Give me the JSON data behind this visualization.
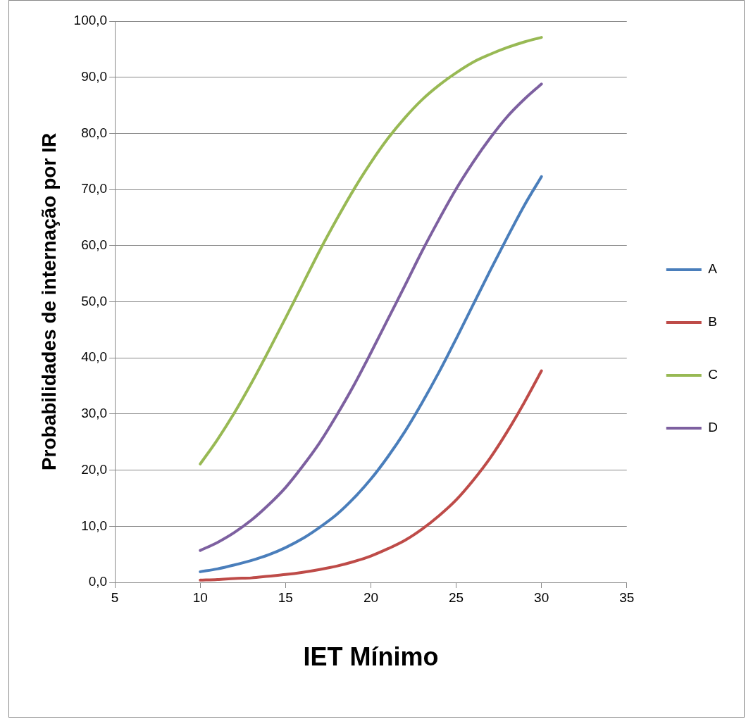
{
  "chart_data": {
    "type": "line",
    "xlabel": "IET Mínimo",
    "ylabel": "Probabilidades de internação por IR",
    "x": [
      10,
      11,
      12,
      13,
      14,
      15,
      16,
      17,
      18,
      19,
      20,
      21,
      22,
      23,
      24,
      25,
      26,
      27,
      28,
      29,
      30
    ],
    "series": [
      {
        "name": "A",
        "color": "#4a7ebb",
        "values": [
          1.9,
          2.4,
          3.1,
          3.9,
          4.9,
          6.2,
          7.8,
          9.8,
          12.1,
          15.0,
          18.4,
          22.4,
          26.9,
          32.0,
          37.5,
          43.4,
          49.5,
          55.6,
          61.5,
          67.2,
          72.3
        ]
      },
      {
        "name": "B",
        "color": "#be4b48",
        "values": [
          0.4,
          0.5,
          0.7,
          0.8,
          1.1,
          1.4,
          1.8,
          2.3,
          2.9,
          3.7,
          4.7,
          6.0,
          7.5,
          9.5,
          11.9,
          14.7,
          18.2,
          22.2,
          26.9,
          32.1,
          37.7
        ]
      },
      {
        "name": "C",
        "color": "#98b954",
        "values": [
          21.1,
          25.4,
          30.2,
          35.5,
          41.2,
          47.1,
          53.1,
          59.1,
          64.7,
          70.0,
          74.8,
          79.1,
          82.8,
          86.0,
          88.6,
          90.8,
          92.7,
          94.1,
          95.3,
          96.3,
          97.1
        ]
      },
      {
        "name": "D",
        "color": "#7d60a0",
        "values": [
          5.7,
          7.1,
          8.9,
          11.1,
          13.8,
          16.9,
          20.7,
          24.9,
          29.8,
          35.1,
          40.9,
          46.9,
          52.9,
          59.0,
          64.7,
          70.1,
          74.9,
          79.2,
          83.0,
          86.1,
          88.8
        ]
      }
    ],
    "xlim": [
      5,
      35
    ],
    "xticks": [
      5,
      10,
      15,
      20,
      25,
      30,
      35
    ],
    "ylim": [
      0,
      100
    ],
    "yticks": [
      {
        "value": 0,
        "label": "0,0"
      },
      {
        "value": 10,
        "label": "10,0"
      },
      {
        "value": 20,
        "label": "20,0"
      },
      {
        "value": 30,
        "label": "30,0"
      },
      {
        "value": 40,
        "label": "40,0"
      },
      {
        "value": 50,
        "label": "50,0"
      },
      {
        "value": 60,
        "label": "60,0"
      },
      {
        "value": 70,
        "label": "70,0"
      },
      {
        "value": 80,
        "label": "80,0"
      },
      {
        "value": 90,
        "label": "90,0"
      },
      {
        "value": 100,
        "label": "100,0"
      }
    ],
    "grid": "y",
    "legend": "right",
    "marker": "none",
    "line_style": "solid"
  }
}
